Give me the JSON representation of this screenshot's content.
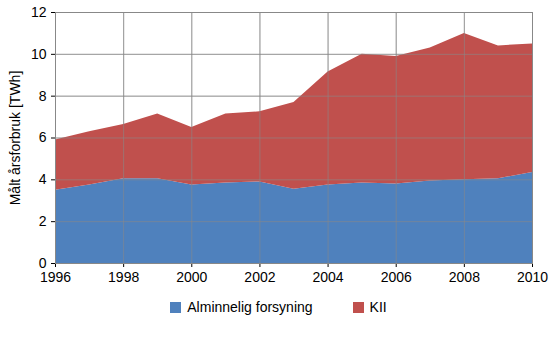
{
  "chart_data": {
    "type": "area",
    "stacked": true,
    "y_label": "Målt årsforbruk [TWh]",
    "x": [
      1996,
      1997,
      1998,
      1999,
      2000,
      2001,
      2002,
      2003,
      2004,
      2005,
      2006,
      2007,
      2008,
      2009,
      2010
    ],
    "series": [
      {
        "name": "Alminnelig forsyning",
        "color": "#4f81bd",
        "values": [
          3.5,
          3.75,
          4.05,
          4.05,
          3.75,
          3.85,
          3.9,
          3.55,
          3.75,
          3.85,
          3.8,
          3.95,
          4.0,
          4.05,
          4.35
        ]
      },
      {
        "name": "KII",
        "color": "#c0504d",
        "values": [
          2.4,
          2.55,
          2.6,
          3.1,
          2.75,
          3.3,
          3.35,
          4.15,
          5.4,
          6.15,
          6.1,
          6.35,
          7.0,
          6.35,
          6.15
        ]
      }
    ],
    "xlim": [
      1996,
      2010
    ],
    "xticks": [
      1996,
      1998,
      2000,
      2002,
      2004,
      2006,
      2008,
      2010
    ],
    "ylim": [
      0,
      12
    ],
    "yticks": [
      0,
      2,
      4,
      6,
      8,
      10,
      12
    ],
    "grid": true,
    "legend": "bottom"
  }
}
